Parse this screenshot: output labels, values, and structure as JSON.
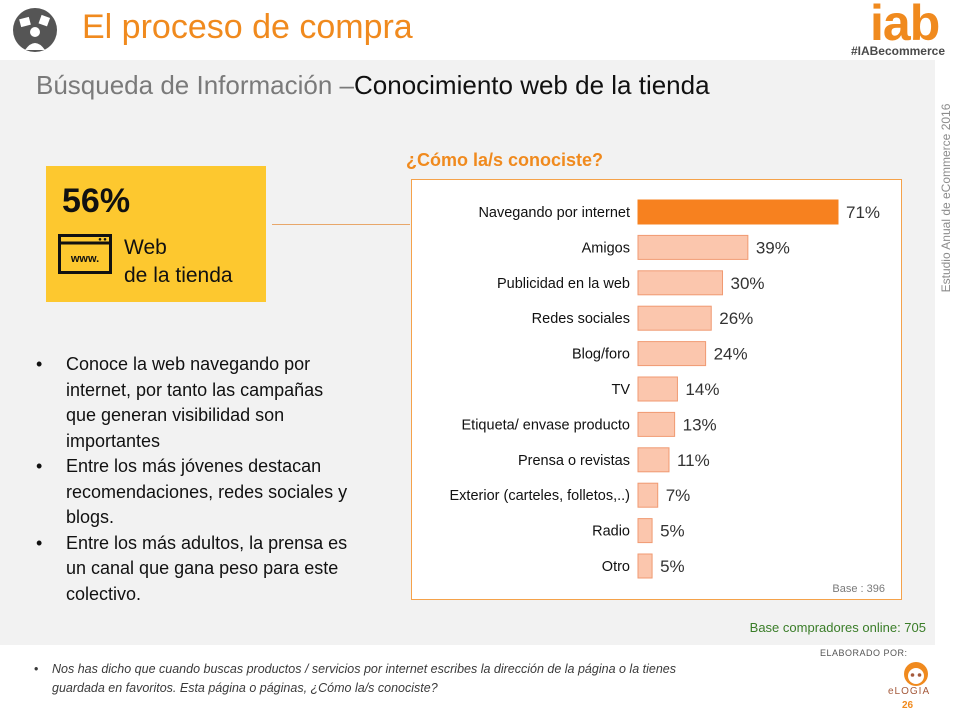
{
  "header": {
    "title": "El proceso de compra",
    "logo": "iab",
    "hashtag": "#IABecommerce"
  },
  "subtitle": {
    "part1": "Búsqueda de Información –",
    "part2": "Conocimiento web de la tienda"
  },
  "side_label": "Estudio Anual de eCommerce 2016",
  "stat": {
    "percent": "56%",
    "icon_text": "www.",
    "label_line1": "Web",
    "label_line2": "de la tienda"
  },
  "bullets": [
    "Conoce la web navegando por internet, por tanto las campañas que generan visibilidad son importantes",
    "Entre los más jóvenes destacan recomendaciones, redes sociales y blogs.",
    "Entre los más adultos, la prensa es un canal que gana peso para este colectivo."
  ],
  "bullet_symbol": "•",
  "chart_title": "¿Cómo la/s conociste?",
  "chart_base": "Base : 396",
  "base_note": "Base compradores online: 705",
  "footnote": {
    "symbol": "•",
    "text": "Nos has dicho que cuando buscas productos / servicios por internet escribes la dirección de la página o la tienes guardada en favoritos.  Esta página o páginas, ¿Cómo la/s conociste?"
  },
  "elaborado": "ELABORADO POR:",
  "elogia": "eLOGIA",
  "page_number": "26",
  "colors": {
    "accent": "#f08a1e",
    "highlight_bar": "#f7811f",
    "bar": "#fbc6ad",
    "bar_border": "#f09a72",
    "stat_box": "#fdc82f",
    "base_note": "#3a7d28"
  },
  "chart_data": {
    "type": "bar",
    "orientation": "horizontal",
    "title": "¿Cómo la/s conociste?",
    "categories": [
      "Navegando por internet",
      "Amigos",
      "Publicidad en la web",
      "Redes sociales",
      "Blog/foro",
      "TV",
      "Etiqueta/ envase producto",
      "Prensa o revistas",
      "Exterior (carteles, folletos,..)",
      "Radio",
      "Otro"
    ],
    "values": [
      71,
      39,
      30,
      26,
      24,
      14,
      13,
      11,
      7,
      5,
      5
    ],
    "value_labels": [
      "71%",
      "39%",
      "30%",
      "26%",
      "24%",
      "14%",
      "13%",
      "11%",
      "7%",
      "5%",
      "5%"
    ],
    "unit": "%",
    "highlight_index": 0,
    "xlim": [
      0,
      71
    ],
    "grid": false,
    "legend": "none"
  }
}
